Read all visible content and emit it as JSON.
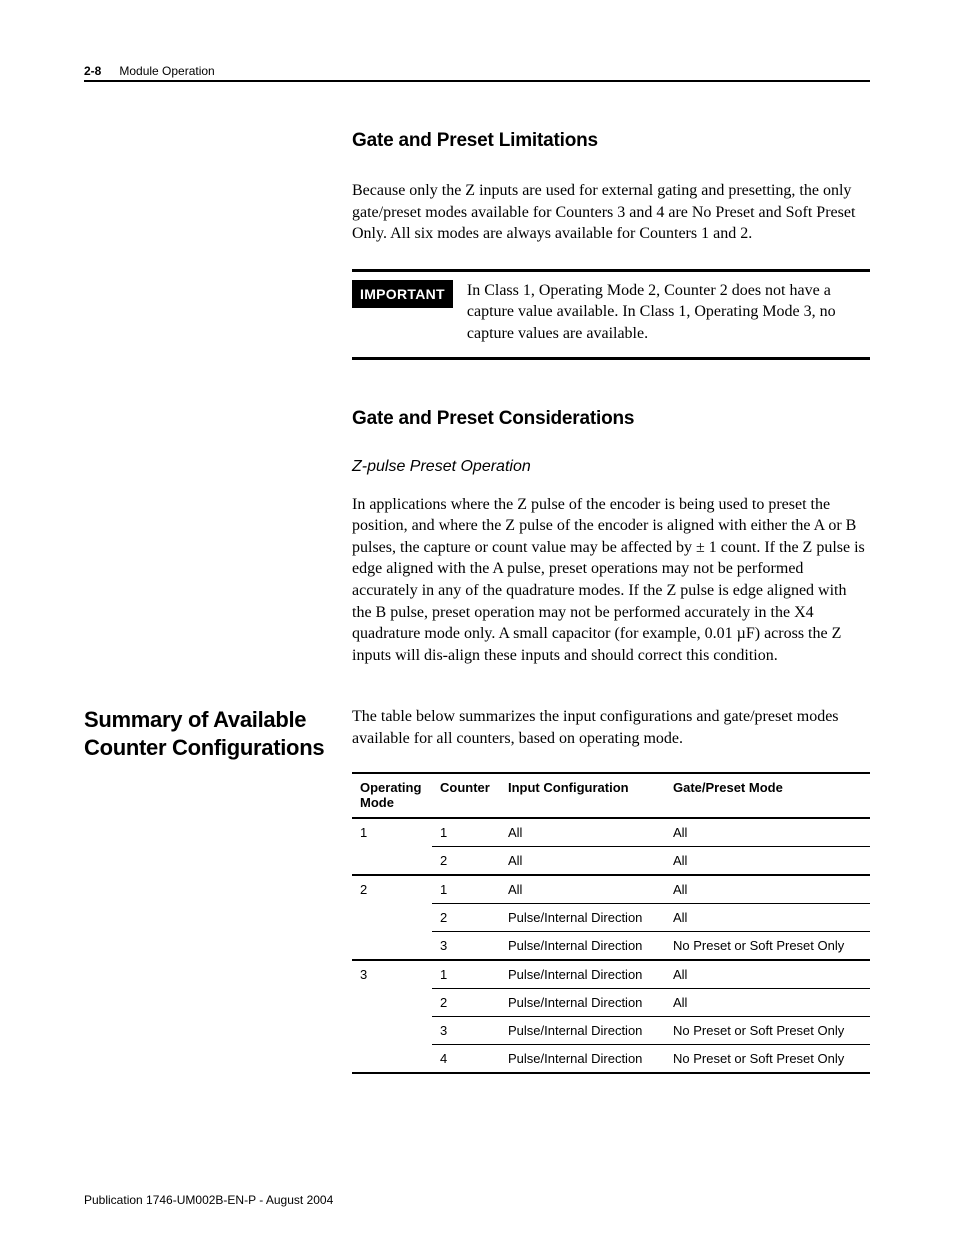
{
  "header": {
    "page_number": "2-8",
    "chapter_title": "Module Operation"
  },
  "section1": {
    "heading": "Gate and Preset Limitations",
    "paragraph": "Because only the Z inputs are used for external gating and presetting, the only gate/preset modes available for Counters 3 and 4 are No Preset and Soft Preset Only. All six modes are always available for Counters 1 and 2."
  },
  "important": {
    "label": "IMPORTANT",
    "text": "In Class 1, Operating Mode 2, Counter 2 does not have a capture value available. In Class 1, Operating Mode 3, no capture values are available."
  },
  "section2": {
    "heading": "Gate and Preset Considerations",
    "subheading": "Z-pulse Preset Operation",
    "paragraph": "In applications where the Z pulse of the encoder is being used to preset the position, and where the Z pulse of the encoder is aligned with either the A or B pulses, the capture or count value may be affected by ± 1 count. If the Z pulse is edge aligned with the A pulse, preset operations may not be performed accurately in any of the quadrature modes. If the Z pulse is edge aligned with the B pulse, preset operation may not be performed accurately in the X4 quadrature mode only. A small capacitor (for example, 0.01 µF) across the Z inputs will dis-align these inputs and should correct this condition."
  },
  "summary": {
    "sidebar_heading": "Summary of Available Counter Configurations",
    "intro": "The table below summarizes the input configurations and gate/preset modes available for all counters, based on operating mode.",
    "table": {
      "columns": [
        "Operating Mode",
        "Counter",
        "Input Configuration",
        "Gate/Preset Mode"
      ],
      "rows": [
        {
          "op": "1",
          "counter": "1",
          "input": "All",
          "gate": "All",
          "first_in_group": true
        },
        {
          "op": "",
          "counter": "2",
          "input": "All",
          "gate": "All"
        },
        {
          "op": "2",
          "counter": "1",
          "input": "All",
          "gate": "All",
          "first_in_group": true
        },
        {
          "op": "",
          "counter": "2",
          "input": "Pulse/Internal Direction",
          "gate": "All"
        },
        {
          "op": "",
          "counter": "3",
          "input": "Pulse/Internal Direction",
          "gate": "No Preset or Soft Preset Only"
        },
        {
          "op": "3",
          "counter": "1",
          "input": "Pulse/Internal Direction",
          "gate": "All",
          "first_in_group": true
        },
        {
          "op": "",
          "counter": "2",
          "input": "Pulse/Internal Direction",
          "gate": "All"
        },
        {
          "op": "",
          "counter": "3",
          "input": "Pulse/Internal Direction",
          "gate": "No Preset or Soft Preset Only"
        },
        {
          "op": "",
          "counter": "4",
          "input": "Pulse/Internal Direction",
          "gate": "No Preset or Soft Preset Only",
          "last": true
        }
      ]
    }
  },
  "footer": {
    "publication": "Publication 1746-UM002B-EN-P - August 2004"
  }
}
